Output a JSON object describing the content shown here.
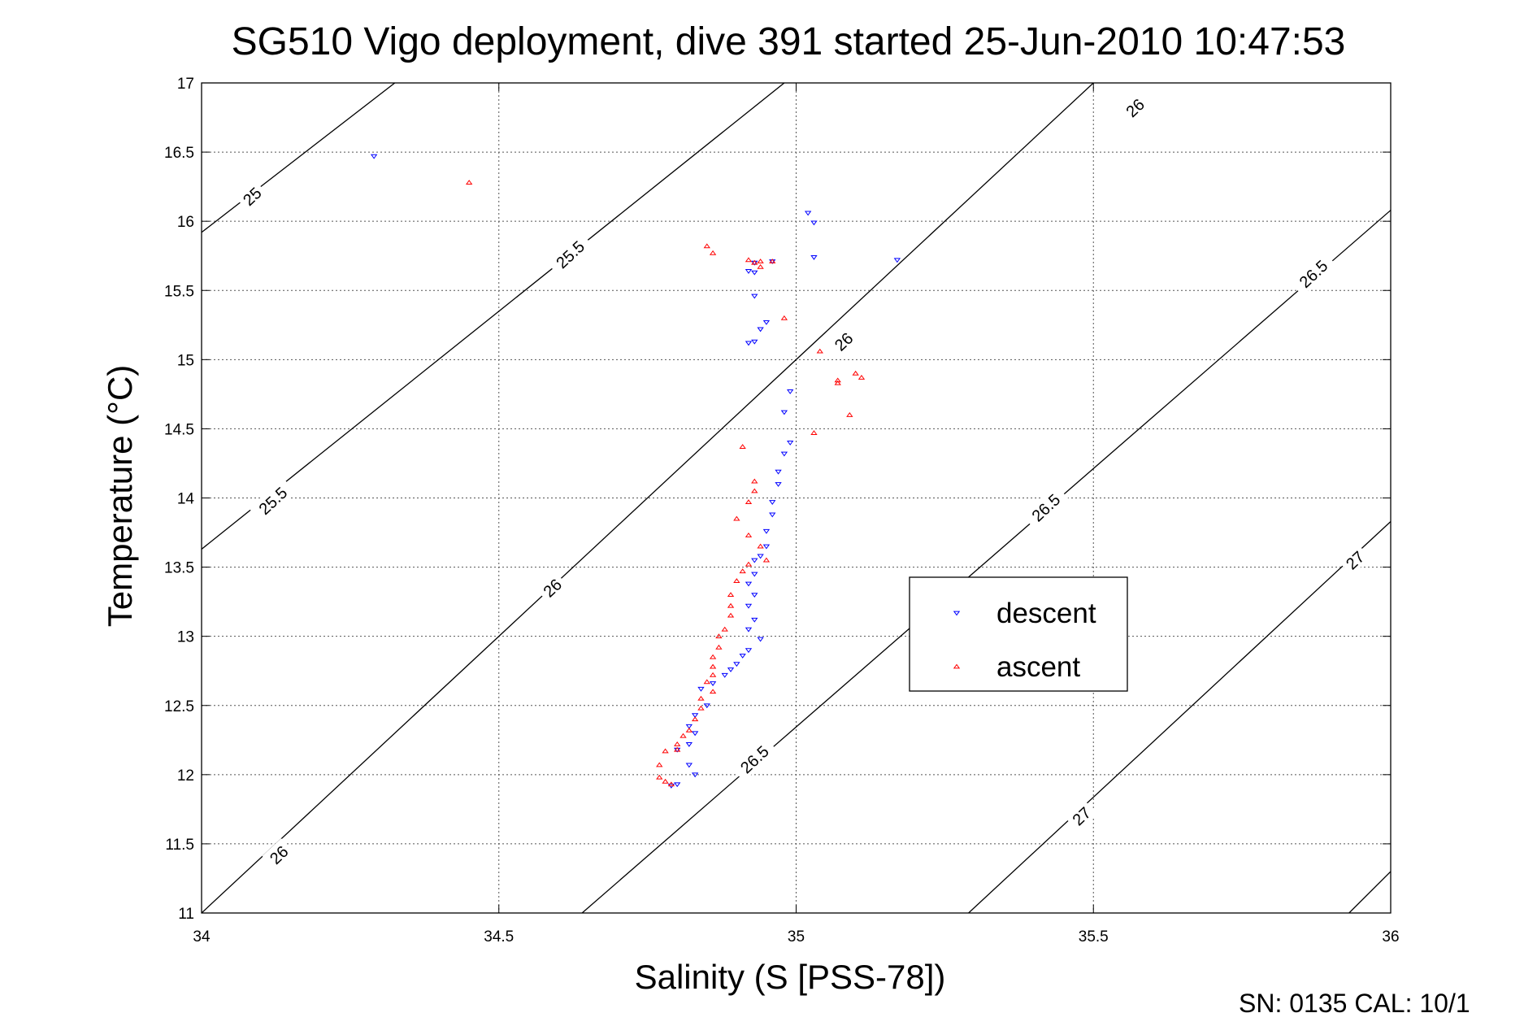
{
  "chart_data": {
    "type": "scatter",
    "title": "SG510 Vigo deployment, dive 391 started 25-Jun-2010 10:47:53",
    "xlabel": "Salinity (S [PSS-78])",
    "ylabel": "Temperature (°C)",
    "xlim": [
      34,
      36
    ],
    "ylim": [
      11,
      17
    ],
    "grid": true,
    "legend_placement": "center-right",
    "xticks": [
      "34",
      "34.5",
      "35",
      "35.5",
      "36"
    ],
    "yticks": [
      "11",
      "11.5",
      "12",
      "12.5",
      "13",
      "13.5",
      "14",
      "14.5",
      "15",
      "15.5",
      "16",
      "16.5",
      "17"
    ],
    "footer": "SN: 0135  CAL: 10/1",
    "contours": [
      {
        "level": "25",
        "points": [
          [
            34,
            15.92
          ],
          [
            34.325,
            17
          ]
        ],
        "label_at": [
          34.085,
          16.18
        ]
      },
      {
        "level": "25.5",
        "points": [
          [
            34,
            13.63
          ],
          [
            34.98,
            17
          ]
        ],
        "label_at": [
          34.12,
          13.98
        ]
      },
      {
        "level": "25.5",
        "labels": [
          "25.5"
        ],
        "label_at": [
          34.62,
          15.76
        ]
      },
      {
        "level": "26",
        "points": [
          [
            34,
            11
          ],
          [
            35.5,
            17
          ]
        ],
        "label_at": [
          34.13,
          11.42
        ]
      },
      {
        "level": "26",
        "labels": [
          "26"
        ],
        "label_at": [
          34.59,
          13.35
        ]
      },
      {
        "level": "26",
        "labels": [
          "26"
        ],
        "label_at": [
          35.08,
          15.13
        ]
      },
      {
        "level": "26",
        "labels": [
          "26"
        ],
        "label_at": [
          35.57,
          16.82
        ]
      },
      {
        "level": "26.5",
        "points": [
          [
            34.64,
            11
          ],
          [
            36,
            16.08
          ]
        ],
        "label_at": [
          34.93,
          12.11
        ]
      },
      {
        "level": "26.5",
        "labels": [
          "26.5"
        ],
        "label_at": [
          35.42,
          13.93
        ]
      },
      {
        "level": "26.5",
        "labels": [
          "26.5"
        ],
        "label_at": [
          35.87,
          15.62
        ]
      },
      {
        "level": "27",
        "points": [
          [
            35.29,
            11
          ],
          [
            36,
            13.83
          ]
        ],
        "label_at": [
          35.48,
          11.7
        ]
      },
      {
        "level": "27",
        "labels": [
          "27"
        ],
        "label_at": [
          35.94,
          13.55
        ]
      },
      {
        "level": "27.5",
        "points": [
          [
            35.93,
            11
          ],
          [
            36,
            11.3
          ]
        ]
      }
    ],
    "series": [
      {
        "name": "descent",
        "color": "#0000ff",
        "marker": "triangle-down",
        "points": [
          [
            34.29,
            16.47
          ],
          [
            35.02,
            16.06
          ],
          [
            35.03,
            15.99
          ],
          [
            35.03,
            15.74
          ],
          [
            35.17,
            15.72
          ],
          [
            34.93,
            15.7
          ],
          [
            34.96,
            15.71
          ],
          [
            34.92,
            15.64
          ],
          [
            34.93,
            15.63
          ],
          [
            34.93,
            15.46
          ],
          [
            34.94,
            15.22
          ],
          [
            34.95,
            15.27
          ],
          [
            34.93,
            15.13
          ],
          [
            34.92,
            15.12
          ],
          [
            34.99,
            14.77
          ],
          [
            34.98,
            14.62
          ],
          [
            34.99,
            14.4
          ],
          [
            34.98,
            14.32
          ],
          [
            34.97,
            14.19
          ],
          [
            34.97,
            14.1
          ],
          [
            34.96,
            13.97
          ],
          [
            34.96,
            13.88
          ],
          [
            34.95,
            13.76
          ],
          [
            34.95,
            13.65
          ],
          [
            34.94,
            13.58
          ],
          [
            34.93,
            13.55
          ],
          [
            34.93,
            13.45
          ],
          [
            34.92,
            13.38
          ],
          [
            34.93,
            13.3
          ],
          [
            34.92,
            13.22
          ],
          [
            34.93,
            13.12
          ],
          [
            34.92,
            13.05
          ],
          [
            34.94,
            12.98
          ],
          [
            34.92,
            12.9
          ],
          [
            34.91,
            12.86
          ],
          [
            34.9,
            12.8
          ],
          [
            34.89,
            12.76
          ],
          [
            34.88,
            12.72
          ],
          [
            34.86,
            12.66
          ],
          [
            34.84,
            12.62
          ],
          [
            34.85,
            12.5
          ],
          [
            34.83,
            12.43
          ],
          [
            34.82,
            12.35
          ],
          [
            34.83,
            12.3
          ],
          [
            34.82,
            12.22
          ],
          [
            34.8,
            12.18
          ],
          [
            34.82,
            12.07
          ],
          [
            34.83,
            12.0
          ],
          [
            34.8,
            11.93
          ],
          [
            34.79,
            11.92
          ]
        ]
      },
      {
        "name": "ascent",
        "color": "#ff0000",
        "marker": "triangle-up",
        "points": [
          [
            34.45,
            16.28
          ],
          [
            34.85,
            15.82
          ],
          [
            34.86,
            15.77
          ],
          [
            34.92,
            15.72
          ],
          [
            34.93,
            15.7
          ],
          [
            34.94,
            15.71
          ],
          [
            34.94,
            15.67
          ],
          [
            34.96,
            15.71
          ],
          [
            34.98,
            15.3
          ],
          [
            35.04,
            15.06
          ],
          [
            35.07,
            14.85
          ],
          [
            35.07,
            14.83
          ],
          [
            35.1,
            14.9
          ],
          [
            35.11,
            14.87
          ],
          [
            35.09,
            14.6
          ],
          [
            35.03,
            14.47
          ],
          [
            34.91,
            14.37
          ],
          [
            34.93,
            14.12
          ],
          [
            34.93,
            14.05
          ],
          [
            34.92,
            13.97
          ],
          [
            34.9,
            13.85
          ],
          [
            34.92,
            13.73
          ],
          [
            34.94,
            13.65
          ],
          [
            34.95,
            13.55
          ],
          [
            34.92,
            13.52
          ],
          [
            34.91,
            13.47
          ],
          [
            34.9,
            13.4
          ],
          [
            34.89,
            13.3
          ],
          [
            34.89,
            13.22
          ],
          [
            34.89,
            13.15
          ],
          [
            34.88,
            13.05
          ],
          [
            34.87,
            13.0
          ],
          [
            34.87,
            12.92
          ],
          [
            34.86,
            12.85
          ],
          [
            34.86,
            12.78
          ],
          [
            34.86,
            12.72
          ],
          [
            34.85,
            12.67
          ],
          [
            34.86,
            12.6
          ],
          [
            34.84,
            12.55
          ],
          [
            34.84,
            12.48
          ],
          [
            34.83,
            12.4
          ],
          [
            34.82,
            12.32
          ],
          [
            34.81,
            12.28
          ],
          [
            34.8,
            12.22
          ],
          [
            34.8,
            12.18
          ],
          [
            34.78,
            12.17
          ],
          [
            34.77,
            12.07
          ],
          [
            34.77,
            11.98
          ],
          [
            34.78,
            11.95
          ],
          [
            34.79,
            11.93
          ]
        ]
      }
    ]
  }
}
